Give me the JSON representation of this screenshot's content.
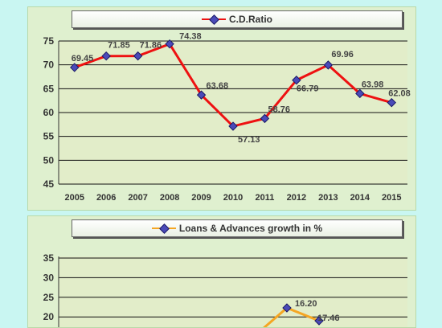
{
  "chart_data": [
    {
      "type": "line",
      "legend": "C.D.Ratio",
      "color": "#ee1111",
      "x": [
        "2005",
        "2006",
        "2007",
        "2008",
        "2009",
        "2010",
        "2011",
        "2012",
        "2013",
        "2014",
        "2015"
      ],
      "values": [
        69.45,
        71.85,
        71.86,
        74.38,
        63.68,
        57.13,
        58.76,
        66.79,
        69.96,
        63.98,
        62.08
      ],
      "data_labels": [
        "69.45",
        "71.85",
        "71.86",
        "74.38",
        "63.68",
        "57.13",
        "58.76",
        "66.79",
        "69.96",
        "63.98",
        "62.08"
      ],
      "yticks": [
        "45",
        "50",
        "55",
        "60",
        "65",
        "70",
        "75"
      ],
      "ylim": [
        45,
        75
      ],
      "grid": true
    },
    {
      "type": "line",
      "legend": "Loans & Advances growth in %",
      "color": "#f5a623",
      "yticks": [
        "20",
        "25",
        "30",
        "35"
      ],
      "visible_data_labels": [
        "16.20",
        "17.46"
      ],
      "grid": true
    }
  ]
}
